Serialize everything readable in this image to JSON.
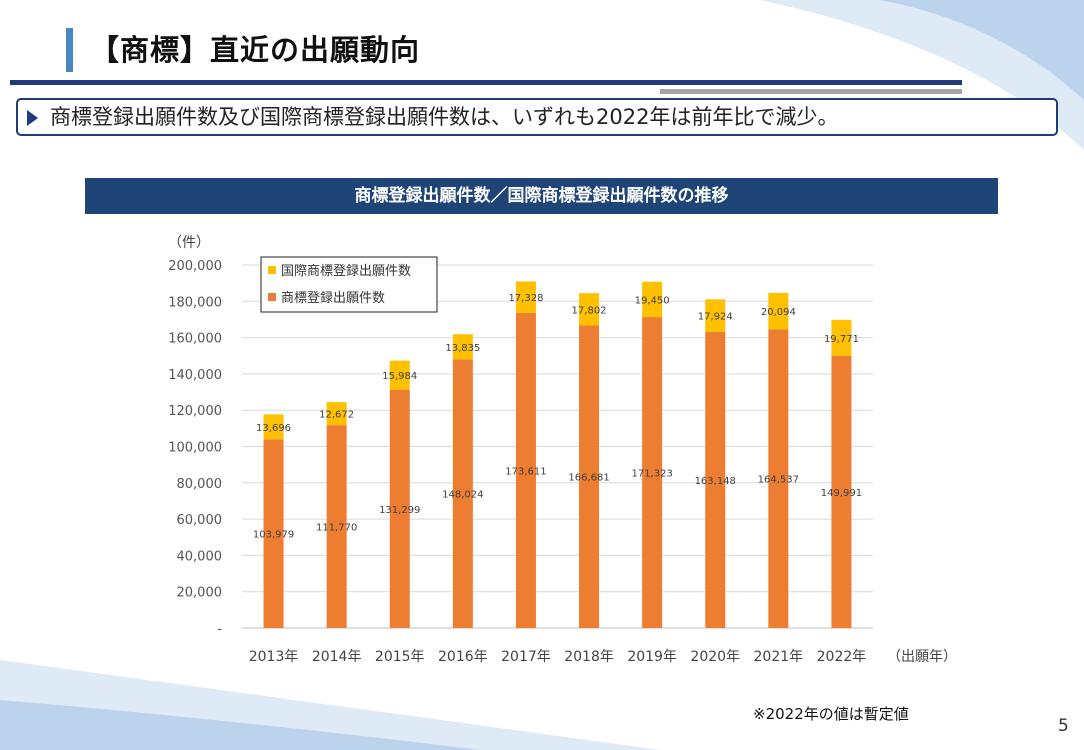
{
  "page": {
    "title": "【商標】直近の出願動向",
    "summary": "商標登録出願件数及び国際商標登録出願件数は、いずれも2022年は前年比で減少。",
    "note": "※2022年の値は暫定値",
    "page_number": "5"
  },
  "colors": {
    "domestic": "#ed7d31",
    "international": "#ffc000",
    "header_bg": "#1f4477",
    "rule": "#1f3c78"
  },
  "chart_data": {
    "type": "bar",
    "stacked": true,
    "title": "商標登録出願件数／国際商標登録出願件数の推移",
    "ylabel": "（件）",
    "xlabel": "（出願年）",
    "ylim": [
      0,
      200000
    ],
    "yticks": [
      "-",
      "20,000",
      "40,000",
      "60,000",
      "80,000",
      "100,000",
      "120,000",
      "140,000",
      "160,000",
      "180,000",
      "200,000"
    ],
    "grid": true,
    "legend_position": "top-left",
    "categories": [
      "2013年",
      "2014年",
      "2015年",
      "2016年",
      "2017年",
      "2018年",
      "2019年",
      "2020年",
      "2021年",
      "2022年"
    ],
    "series": [
      {
        "name": "商標登録出願件数",
        "values": [
          103979,
          111770,
          131299,
          148024,
          173611,
          166681,
          171323,
          163148,
          164537,
          149991
        ],
        "labels": [
          "103,979",
          "111,770",
          "131,299",
          "148,024",
          "173,611",
          "166,681",
          "171,323",
          "163,148",
          "164,537",
          "149,991"
        ]
      },
      {
        "name": "国際商標登録出願件数",
        "values": [
          13696,
          12672,
          15984,
          13835,
          17328,
          17802,
          19450,
          17924,
          20094,
          19771
        ],
        "labels": [
          "13,696",
          "12,672",
          "15,984",
          "13,835",
          "17,328",
          "17,802",
          "19,450",
          "17,924",
          "20,094",
          "19,771"
        ]
      }
    ]
  }
}
